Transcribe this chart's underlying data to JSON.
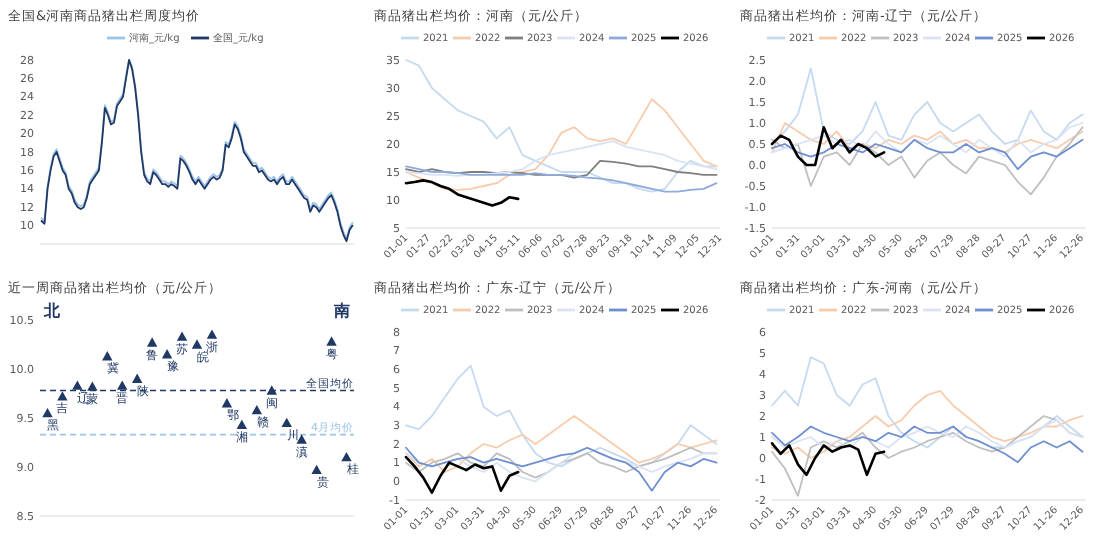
{
  "chart_data": [
    {
      "type": "line",
      "title": "全国&河南商品猪出栏周度均价",
      "legend": "top",
      "categories": [
        null,
        null,
        null,
        null,
        null,
        null,
        null,
        null,
        null,
        null,
        null,
        null,
        null,
        null,
        null,
        null,
        null,
        null,
        null,
        null,
        null,
        null,
        null,
        null,
        null,
        null,
        null,
        null,
        null,
        null,
        null,
        null,
        null,
        null,
        null,
        null,
        null,
        null,
        null,
        null,
        null,
        null,
        null,
        null,
        null,
        null,
        null,
        null,
        null,
        null,
        null,
        null,
        null,
        null,
        null,
        null,
        null,
        null,
        null,
        null,
        null,
        null,
        null,
        null,
        null,
        null,
        null,
        null,
        null,
        null,
        null,
        null,
        null,
        null,
        null,
        null,
        null,
        null,
        null,
        null,
        null,
        null,
        null,
        null,
        null,
        null,
        null,
        null,
        null,
        null,
        null,
        null,
        null,
        null,
        null,
        null,
        null,
        null,
        null,
        null,
        null,
        null,
        null,
        null
      ],
      "ylim": [
        8,
        28
      ],
      "yticks": [
        10,
        12,
        14,
        16,
        18,
        20,
        22,
        24,
        26,
        28
      ],
      "series": [
        {
          "name": "河南_元/kg",
          "color": "#9dc3e6",
          "values": [
            10.8,
            10.5,
            14.3,
            16.3,
            17.8,
            18.3,
            17.3,
            16.3,
            15.8,
            14.3,
            13.8,
            12.8,
            12.3,
            12.1,
            12.3,
            13.3,
            14.8,
            15.3,
            15.8,
            16.3,
            19.3,
            23.1,
            22.3,
            21.3,
            21.5,
            23.3,
            23.8,
            24.3,
            26.3,
            28,
            27.3,
            25.3,
            22.3,
            18.3,
            15.8,
            15.1,
            14.8,
            16.1,
            15.8,
            15.3,
            14.8,
            14.8,
            14.5,
            14.8,
            14.6,
            14.3,
            17.6,
            17.3,
            16.8,
            16.1,
            15.3,
            14.8,
            15.3,
            14.8,
            14.3,
            14.8,
            15.3,
            15.6,
            15.3,
            15.5,
            16.3,
            19.1,
            18.8,
            19.8,
            21.3,
            20.8,
            19.8,
            18.3,
            17.8,
            17.3,
            16.8,
            16.8,
            16.1,
            16.3,
            15.8,
            15.3,
            15.1,
            15.3,
            14.8,
            15.3,
            15.6,
            14.8,
            14.8,
            15.3,
            14.8,
            14.3,
            13.8,
            13.3,
            13.1,
            11.8,
            12.5,
            12.3,
            11.8,
            12.3,
            12.8,
            13.3,
            13.6,
            12.8,
            11.8,
            10.3,
            9.3,
            8.6,
            9.8,
            10.3
          ]
        },
        {
          "name": "全国_元/kg",
          "color": "#203864",
          "values": [
            10.5,
            10.2,
            14,
            16,
            17.5,
            18,
            17,
            16,
            15.5,
            14,
            13.5,
            12.5,
            12,
            11.8,
            12,
            13,
            14.5,
            15,
            15.5,
            16,
            19,
            22.8,
            22,
            21,
            21.2,
            23,
            23.5,
            24,
            26,
            28,
            27,
            25,
            22,
            18,
            15.5,
            14.8,
            14.5,
            15.8,
            15.5,
            15,
            14.5,
            14.5,
            14.2,
            14.5,
            14.3,
            14,
            17.3,
            17,
            16.5,
            15.8,
            15,
            14.5,
            15,
            14.5,
            14,
            14.5,
            15,
            15.3,
            15,
            15.2,
            16,
            18.8,
            18.5,
            19.5,
            21,
            20.5,
            19.5,
            18,
            17.5,
            17,
            16.5,
            16.5,
            15.8,
            16,
            15.5,
            15,
            14.8,
            15,
            14.5,
            15,
            15.3,
            14.5,
            14.5,
            15,
            14.5,
            14,
            13.5,
            13,
            12.8,
            11.5,
            12.2,
            12,
            11.5,
            12,
            12.5,
            13,
            13.3,
            12.5,
            11.5,
            10,
            9,
            8.3,
            9.5,
            10
          ]
        }
      ]
    },
    {
      "type": "line",
      "title": "商品猪出栏均价：河南（元/公斤）",
      "legend": "top",
      "x": [
        "--01-01",
        "--01-16",
        "--01-31",
        "--02-15",
        "--03-02",
        "--03-17",
        "--04-01",
        "--04-16",
        "--05-01",
        "--05-16",
        "--05-31",
        "--06-15",
        "--06-30",
        "--07-15",
        "--07-30",
        "--08-14",
        "--08-29",
        "--09-13",
        "--09-28",
        "--10-13",
        "--10-28",
        "--11-12",
        "--11-27",
        "--12-12",
        "--12-27"
      ],
      "xlim": [
        "--01-01",
        "--12-31"
      ],
      "xticks": [
        {
          "value": "--01-01",
          "label": "01-01"
        },
        {
          "value": "--01-27",
          "label": "01-27"
        },
        {
          "value": "--02-22",
          "label": "02-22"
        },
        {
          "value": "--03-20",
          "label": "03-20"
        },
        {
          "value": "--04-15",
          "label": "04-15"
        },
        {
          "value": "--05-11",
          "label": "05-11"
        },
        {
          "value": "--06-06",
          "label": "06-06"
        },
        {
          "value": "--07-02",
          "label": "07-02"
        },
        {
          "value": "--07-28",
          "label": "07-28"
        },
        {
          "value": "--08-23",
          "label": "08-23"
        },
        {
          "value": "--09-18",
          "label": "09-18"
        },
        {
          "value": "--10-14",
          "label": "10-14"
        },
        {
          "value": "--11-09",
          "label": "11-09"
        },
        {
          "value": "--12-05",
          "label": "12-05"
        },
        {
          "value": "--12-31",
          "label": "12-31"
        }
      ],
      "ylim": [
        5,
        35
      ],
      "yticks": [
        5,
        10,
        15,
        20,
        25,
        30,
        35
      ],
      "series": [
        {
          "name": "2021",
          "color": "#c5d9f1",
          "values": [
            35,
            34,
            30,
            28,
            26,
            25,
            24,
            21,
            23,
            18,
            17,
            16,
            15,
            15,
            15,
            14,
            13,
            13,
            12,
            11.5,
            12,
            15,
            17,
            16,
            16
          ]
        },
        {
          "name": "2022",
          "color": "#f8cbad",
          "values": [
            15,
            14,
            13,
            12,
            11.8,
            12,
            12.5,
            13,
            14.5,
            15,
            15.5,
            18,
            22,
            23,
            21,
            20.5,
            21,
            20,
            24,
            28,
            26,
            23,
            20,
            17,
            16
          ]
        },
        {
          "name": "2023",
          "color": "#7f7f7f",
          "values": [
            15.5,
            15,
            15.5,
            15,
            14.8,
            15,
            15,
            14.8,
            15,
            14.8,
            14.5,
            14.5,
            14.5,
            14,
            14.5,
            17,
            16.8,
            16.5,
            16,
            16,
            15.5,
            15,
            14.8,
            14.5,
            14.5
          ]
        },
        {
          "name": "2024",
          "color": "#dae3f3",
          "values": [
            15,
            14.8,
            14.5,
            14.5,
            14.3,
            14.5,
            14.5,
            14.8,
            15,
            15.5,
            17,
            18,
            18.5,
            19,
            19.5,
            20,
            20.5,
            19.5,
            19,
            18.5,
            18,
            17,
            16.5,
            16,
            15.5
          ]
        },
        {
          "name": "2025",
          "color": "#8faadc",
          "values": [
            16,
            15.5,
            15,
            15,
            14.8,
            14.5,
            14.5,
            14.5,
            14.5,
            14.5,
            14.8,
            14.5,
            14.5,
            14.3,
            14,
            13.8,
            13.5,
            13,
            12.5,
            12,
            11.5,
            11.5,
            11.8,
            12,
            13
          ]
        },
        {
          "name": "2026",
          "color": "#000000",
          "x": [
            "--01-01",
            "--01-11",
            "--01-21",
            "--01-31",
            "--02-10",
            "--02-20",
            "--03-02",
            "--03-12",
            "--03-22",
            "--04-01",
            "--04-11",
            "--04-21",
            "--05-01",
            "--05-11"
          ],
          "values": [
            13,
            13.2,
            13.5,
            13.2,
            12.5,
            12,
            11,
            10.5,
            10,
            9.5,
            9,
            9.5,
            10.5,
            10.2
          ]
        }
      ]
    },
    {
      "type": "line",
      "title": "商品猪出栏均价：河南-辽宁（元/公斤）",
      "legend": "top",
      "x": [
        "--01-01",
        "--01-16",
        "--01-31",
        "--02-15",
        "--03-02",
        "--03-17",
        "--04-01",
        "--04-16",
        "--05-01",
        "--05-16",
        "--05-31",
        "--06-15",
        "--06-30",
        "--07-15",
        "--07-30",
        "--08-14",
        "--08-29",
        "--09-13",
        "--09-28",
        "--10-13",
        "--10-28",
        "--11-12",
        "--11-27",
        "--12-12",
        "--12-27"
      ],
      "xlim": [
        "--01-01",
        "--12-31"
      ],
      "xticks": [
        {
          "value": "--01-01",
          "label": "01-01"
        },
        {
          "value": "--01-31",
          "label": "01-31"
        },
        {
          "value": "--03-01",
          "label": "03-01"
        },
        {
          "value": "--03-31",
          "label": "03-31"
        },
        {
          "value": "--04-30",
          "label": "04-30"
        },
        {
          "value": "--05-30",
          "label": "05-30"
        },
        {
          "value": "--06-29",
          "label": "06-29"
        },
        {
          "value": "--07-29",
          "label": "07-29"
        },
        {
          "value": "--08-28",
          "label": "08-28"
        },
        {
          "value": "--09-27",
          "label": "09-27"
        },
        {
          "value": "--10-27",
          "label": "10-27"
        },
        {
          "value": "--11-26",
          "label": "11-26"
        },
        {
          "value": "--12-26",
          "label": "12-26"
        }
      ],
      "ylim": [
        -1.5,
        2.5
      ],
      "yticks": [
        {
          "value": -1.5,
          "label": "-1.5"
        },
        {
          "value": -1,
          "label": "-1.0"
        },
        {
          "value": -0.5,
          "label": "-0.5"
        },
        {
          "value": 0,
          "label": "0.0"
        },
        {
          "value": 0.5,
          "label": "0.5"
        },
        {
          "value": 1,
          "label": "1.0"
        },
        {
          "value": 1.5,
          "label": "1.5"
        },
        {
          "value": 2,
          "label": "2.0"
        },
        {
          "value": 2.5,
          "label": "2.5"
        }
      ],
      "series": [
        {
          "name": "2021",
          "color": "#c5d9f1",
          "values": [
            0.5,
            0.8,
            1.2,
            2.3,
            0.8,
            0.6,
            0.5,
            0.8,
            1.5,
            0.7,
            0.6,
            1.2,
            1.5,
            1,
            0.8,
            1,
            1.2,
            0.8,
            0.5,
            0.6,
            1.3,
            0.8,
            0.6,
            1,
            1.2
          ]
        },
        {
          "name": "2022",
          "color": "#f8cbad",
          "values": [
            0.3,
            1,
            0.8,
            0.6,
            0.5,
            0.8,
            0.4,
            0.5,
            0.4,
            0.6,
            0.5,
            0.7,
            0.6,
            0.8,
            0.5,
            0.6,
            0.4,
            0.4,
            0.3,
            0.5,
            0.6,
            0.5,
            0.4,
            0.6,
            0.8
          ]
        },
        {
          "name": "2023",
          "color": "#bfbfbf",
          "values": [
            0.6,
            0.4,
            0.5,
            -0.5,
            0.2,
            0.3,
            0,
            0.5,
            0.3,
            0,
            0.2,
            -0.3,
            0.1,
            0.3,
            0,
            -0.2,
            0.2,
            0.1,
            0,
            -0.4,
            -0.7,
            -0.3,
            0.2,
            0.5,
            0.9
          ]
        },
        {
          "name": "2024",
          "color": "#dae3f3",
          "values": [
            0.3,
            0.4,
            0.5,
            0.6,
            0.7,
            0.5,
            0.6,
            0.4,
            0.8,
            0.5,
            0.3,
            0.6,
            0.5,
            0.7,
            0.5,
            0.3,
            0.6,
            0.4,
            0.2,
            0.6,
            0.3,
            0.5,
            0.6,
            0.9,
            1
          ]
        },
        {
          "name": "2025",
          "color": "#6f8fd0",
          "values": [
            0.4,
            0.5,
            0.3,
            0.2,
            0.3,
            0.5,
            0.4,
            0.3,
            0.5,
            0.4,
            0.3,
            0.6,
            0.4,
            0.3,
            0.3,
            0.5,
            0.3,
            0.4,
            0.3,
            -0.1,
            0.2,
            0.3,
            0.2,
            0.4,
            0.6
          ]
        },
        {
          "name": "2026",
          "color": "#000000",
          "x": [
            "--01-01",
            "--01-11",
            "--01-21",
            "--01-31",
            "--02-10",
            "--02-20",
            "--03-02",
            "--03-12",
            "--03-22",
            "--04-01",
            "--04-11",
            "--04-21",
            "--05-01",
            "--05-11"
          ],
          "values": [
            0.5,
            0.7,
            0.6,
            0.2,
            0,
            0,
            0.9,
            0.4,
            0.6,
            0.3,
            0.5,
            0.4,
            0.2,
            0.3
          ]
        }
      ]
    },
    {
      "type": "scatter",
      "title": "近一周商品猪出栏均价（元/公斤）",
      "marker": "triangle",
      "tick_labels": "y",
      "annotations": [
        "北",
        "南"
      ],
      "categories": [
        "黑",
        "吉",
        "辽",
        "蒙",
        "冀",
        "晋",
        "陕",
        "鲁",
        "豫",
        "苏",
        "皖",
        "浙",
        "鄂",
        "湘",
        "赣",
        "闽",
        "川",
        "滇",
        "贵",
        "粤",
        "桂"
      ],
      "ylim": [
        8.5,
        10.5
      ],
      "yticks": [
        {
          "value": 8.5,
          "label": "8.5"
        },
        {
          "value": 9,
          "label": "9.0"
        },
        {
          "value": 9.5,
          "label": "9.5"
        },
        {
          "value": 10,
          "label": "10.0"
        },
        {
          "value": 10.5,
          "label": "10.5"
        }
      ],
      "ref_lines": [
        {
          "axis": "y",
          "value": 9.78,
          "label": "全国均价",
          "color": "#203864",
          "line_style": "dashed"
        },
        {
          "axis": "y",
          "value": 9.33,
          "label": "4月均价",
          "color": "#9dc3e6",
          "line_style": "dashed"
        }
      ],
      "series": [
        {
          "color": "#203864",
          "values": [
            9.55,
            9.72,
            9.83,
            9.82,
            10.13,
            9.83,
            9.9,
            10.27,
            10.15,
            10.33,
            10.25,
            10.35,
            9.65,
            9.43,
            9.58,
            9.78,
            9.45,
            9.28,
            8.97,
            10.28,
            9.1
          ]
        }
      ]
    },
    {
      "type": "line",
      "title": "商品猪出栏均价：广东-辽宁（元/公斤）",
      "legend": "top",
      "x": [
        "--01-01",
        "--01-16",
        "--01-31",
        "--02-15",
        "--03-02",
        "--03-17",
        "--04-01",
        "--04-16",
        "--05-01",
        "--05-16",
        "--05-31",
        "--06-15",
        "--06-30",
        "--07-15",
        "--07-30",
        "--08-14",
        "--08-29",
        "--09-13",
        "--09-28",
        "--10-13",
        "--10-28",
        "--11-12",
        "--11-27",
        "--12-12",
        "--12-27"
      ],
      "xlim": [
        "--01-01",
        "--12-31"
      ],
      "xticks": [
        {
          "value": "--01-01",
          "label": "01-01"
        },
        {
          "value": "--01-31",
          "label": "01-31"
        },
        {
          "value": "--03-01",
          "label": "03-01"
        },
        {
          "value": "--03-31",
          "label": "03-31"
        },
        {
          "value": "--04-30",
          "label": "04-30"
        },
        {
          "value": "--05-30",
          "label": "05-30"
        },
        {
          "value": "--06-29",
          "label": "06-29"
        },
        {
          "value": "--07-29",
          "label": "07-29"
        },
        {
          "value": "--08-28",
          "label": "08-28"
        },
        {
          "value": "--09-27",
          "label": "09-27"
        },
        {
          "value": "--10-27",
          "label": "10-27"
        },
        {
          "value": "--11-26",
          "label": "11-26"
        },
        {
          "value": "--12-26",
          "label": "12-26"
        }
      ],
      "ylim": [
        -1,
        8
      ],
      "yticks": [
        -1,
        0,
        1,
        2,
        3,
        4,
        5,
        6,
        7,
        8
      ],
      "series": [
        {
          "name": "2021",
          "color": "#c5d9f1",
          "values": [
            3,
            2.8,
            3.5,
            4.5,
            5.5,
            6.2,
            4,
            3.5,
            3.8,
            2.5,
            1.5,
            1,
            0.8,
            1.2,
            1.5,
            1.8,
            1.5,
            1.2,
            0.8,
            1,
            1.5,
            2,
            3,
            2.5,
            2
          ]
        },
        {
          "name": "2022",
          "color": "#f8cbad",
          "values": [
            1.5,
            0.8,
            1.2,
            0.5,
            0.8,
            1.5,
            2,
            1.8,
            2.2,
            2.5,
            2,
            2.5,
            3,
            3.5,
            3,
            2.5,
            2,
            1.5,
            1,
            1.2,
            1.5,
            2,
            1.8,
            2,
            2.2
          ]
        },
        {
          "name": "2023",
          "color": "#bfbfbf",
          "values": [
            1,
            0.5,
            1,
            1.2,
            1.5,
            1,
            0.8,
            1.5,
            1.2,
            0.5,
            0.2,
            0.5,
            1,
            1.2,
            1.5,
            1,
            0.8,
            0.5,
            0.8,
            1,
            1.2,
            1.5,
            1.8,
            1.5,
            1.5
          ]
        },
        {
          "name": "2024",
          "color": "#dae3f3",
          "values": [
            1.5,
            1,
            0.8,
            1,
            1.2,
            0.8,
            0.5,
            1,
            0.5,
            0.2,
            0,
            0.5,
            1,
            1.5,
            1.8,
            1.5,
            1.2,
            1,
            0.8,
            0.5,
            0.8,
            1,
            1.2,
            1.5,
            1.5
          ]
        },
        {
          "name": "2025",
          "color": "#6f8fd0",
          "values": [
            1.8,
            1,
            0.8,
            1,
            1.2,
            1.3,
            1,
            1.2,
            1,
            0.8,
            1,
            1.2,
            1.4,
            1.5,
            1.8,
            1.5,
            1.2,
            1,
            0.5,
            -0.5,
            0.5,
            1,
            0.8,
            1.2,
            1
          ]
        },
        {
          "name": "2026",
          "color": "#000000",
          "x": [
            "--01-01",
            "--01-11",
            "--01-21",
            "--01-31",
            "--02-10",
            "--02-20",
            "--03-02",
            "--03-12",
            "--03-22",
            "--04-01",
            "--04-11",
            "--04-21",
            "--05-01",
            "--05-11"
          ],
          "values": [
            1.3,
            0.8,
            0.2,
            -0.6,
            0.3,
            1,
            0.8,
            0.6,
            0.9,
            0.7,
            0.8,
            -0.5,
            0.3,
            0.5
          ]
        }
      ]
    },
    {
      "type": "line",
      "title": "商品猪出栏均价：广东-河南（元/公斤）",
      "legend": "top",
      "x": [
        "--01-01",
        "--01-16",
        "--01-31",
        "--02-15",
        "--03-02",
        "--03-17",
        "--04-01",
        "--04-16",
        "--05-01",
        "--05-16",
        "--05-31",
        "--06-15",
        "--06-30",
        "--07-15",
        "--07-30",
        "--08-14",
        "--08-29",
        "--09-13",
        "--09-28",
        "--10-13",
        "--10-28",
        "--11-12",
        "--11-27",
        "--12-12",
        "--12-27"
      ],
      "xlim": [
        "--01-01",
        "--12-31"
      ],
      "xticks": [
        {
          "value": "--01-01",
          "label": "01-01"
        },
        {
          "value": "--01-31",
          "label": "01-31"
        },
        {
          "value": "--03-01",
          "label": "03-01"
        },
        {
          "value": "--03-31",
          "label": "03-31"
        },
        {
          "value": "--04-30",
          "label": "04-30"
        },
        {
          "value": "--05-30",
          "label": "05-30"
        },
        {
          "value": "--06-29",
          "label": "06-29"
        },
        {
          "value": "--07-29",
          "label": "07-29"
        },
        {
          "value": "--08-28",
          "label": "08-28"
        },
        {
          "value": "--09-27",
          "label": "09-27"
        },
        {
          "value": "--10-27",
          "label": "10-27"
        },
        {
          "value": "--11-26",
          "label": "11-26"
        },
        {
          "value": "--12-26",
          "label": "12-26"
        }
      ],
      "ylim": [
        -2,
        6
      ],
      "yticks": [
        -2,
        -1,
        0,
        1,
        2,
        3,
        4,
        5,
        6
      ],
      "series": [
        {
          "name": "2021",
          "color": "#c5d9f1",
          "values": [
            2.5,
            3.2,
            2.5,
            4.8,
            4.5,
            3,
            2.5,
            3.5,
            3.8,
            2,
            1.2,
            0.8,
            0.5,
            1,
            1.5,
            1,
            0.8,
            0.5,
            0.5,
            0.8,
            1,
            1.5,
            2,
            1.5,
            1
          ]
        },
        {
          "name": "2022",
          "color": "#f8cbad",
          "values": [
            0.5,
            0.2,
            0.5,
            0,
            0.3,
            0.8,
            1,
            1.5,
            2,
            1.5,
            1.8,
            2.5,
            3,
            3.2,
            2.5,
            2,
            1.5,
            1,
            0.8,
            1,
            1.2,
            1.5,
            1.5,
            1.8,
            2
          ]
        },
        {
          "name": "2023",
          "color": "#bfbfbf",
          "values": [
            0.3,
            -0.5,
            -1.8,
            0.5,
            0.8,
            0.5,
            0.8,
            1.2,
            0.5,
            0,
            0.3,
            0.5,
            0.8,
            1,
            1.2,
            0.8,
            0.5,
            0.3,
            0.5,
            1,
            1.5,
            2,
            1.8,
            1.2,
            1
          ]
        },
        {
          "name": "2024",
          "color": "#dae3f3",
          "values": [
            1,
            0.5,
            0.8,
            1,
            0.5,
            0.8,
            0.5,
            1,
            0.8,
            0.5,
            1,
            1.2,
            1.5,
            1.2,
            1,
            1.5,
            1.2,
            0.8,
            0.5,
            0.8,
            1,
            1.5,
            1.8,
            1.2,
            1
          ]
        },
        {
          "name": "2025",
          "color": "#6f8fd0",
          "values": [
            1.2,
            0.6,
            1,
            1.5,
            1.2,
            1,
            0.8,
            1,
            0.8,
            1.2,
            1,
            1.5,
            1.2,
            1.2,
            1.5,
            1,
            0.8,
            0.5,
            0.2,
            -0.2,
            0.5,
            0.8,
            0.5,
            0.8,
            0.3
          ]
        },
        {
          "name": "2026",
          "color": "#000000",
          "x": [
            "--01-01",
            "--01-11",
            "--01-21",
            "--01-31",
            "--02-10",
            "--02-20",
            "--03-02",
            "--03-12",
            "--03-22",
            "--04-01",
            "--04-11",
            "--04-21",
            "--05-01",
            "--05-11"
          ],
          "values": [
            0.7,
            0.2,
            0.6,
            -0.3,
            -0.8,
            0,
            0.6,
            0.3,
            0.5,
            0.6,
            0.4,
            -0.8,
            0.2,
            0.3
          ]
        }
      ]
    }
  ]
}
